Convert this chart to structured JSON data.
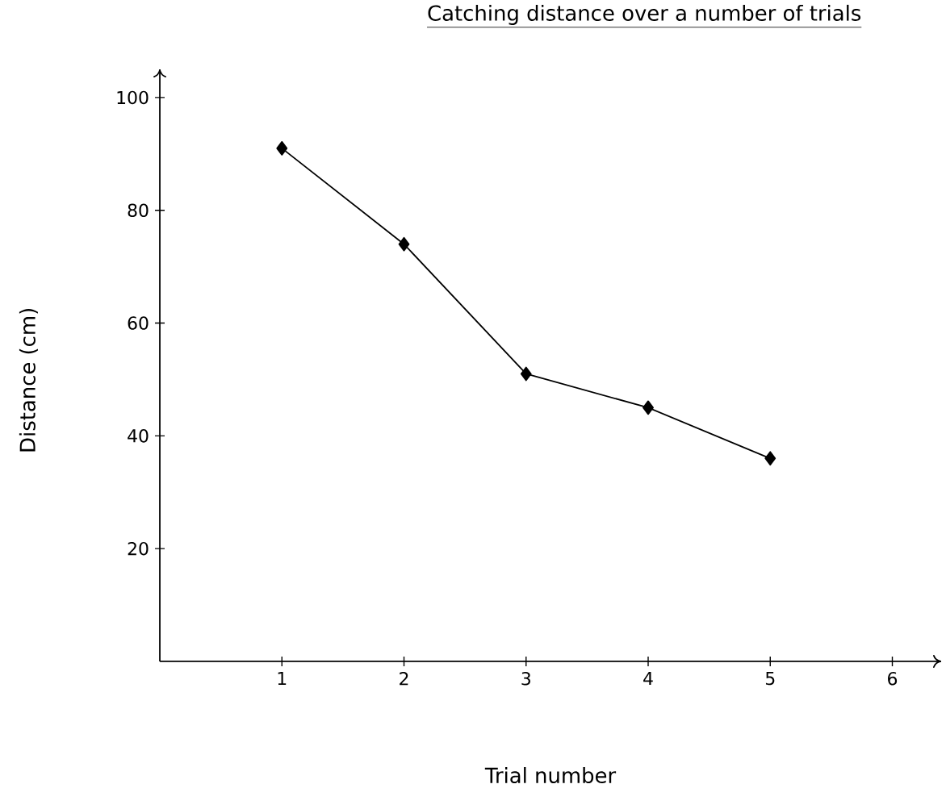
{
  "chart_data": {
    "type": "line",
    "title": "Catching distance over a number of trials",
    "xlabel": "Trial number",
    "ylabel": "Distance (cm)",
    "x": [
      1,
      2,
      3,
      4,
      5
    ],
    "series": [
      {
        "color": "#000000",
        "values": [
          91,
          74,
          51,
          45,
          36
        ]
      }
    ],
    "xlim": [
      0,
      6.4
    ],
    "ylim": [
      0,
      105
    ],
    "xticks": [
      1,
      2,
      3,
      4,
      5,
      6
    ],
    "yticks": [
      20,
      40,
      60,
      80,
      100
    ],
    "grid": false,
    "marker": "diamond",
    "line_style": "solid"
  }
}
